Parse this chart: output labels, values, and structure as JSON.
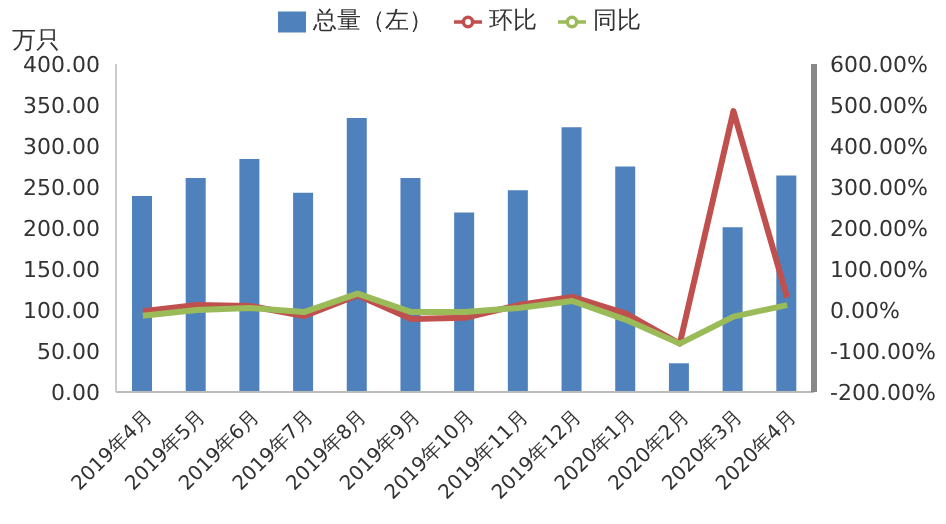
{
  "chart_data": {
    "type": "bar",
    "ylabel": "万只",
    "categories": [
      "2019年4月",
      "2019年5月",
      "2019年6月",
      "2019年7月",
      "2019年8月",
      "2019年9月",
      "2019年10月",
      "2019年11月",
      "2019年12月",
      "2020年1月",
      "2020年2月",
      "2020年3月",
      "2020年4月"
    ],
    "series": [
      {
        "name": "总量（左）",
        "color": "#4f81bd",
        "values": [
          239,
          261,
          284,
          243,
          334,
          261,
          219,
          246,
          323,
          275,
          35,
          201,
          264
        ]
      },
      {
        "name": "环比",
        "type": "line",
        "axis": "y2",
        "color": "#c0504d",
        "values": [
          -3,
          12,
          10,
          -15,
          36,
          -22,
          -19,
          12,
          32,
          -9,
          -82,
          485,
          30
        ]
      },
      {
        "name": "同比",
        "type": "line",
        "axis": "y2",
        "color": "#9bbb59",
        "values": [
          -14,
          0,
          5,
          -5,
          40,
          -5,
          -5,
          5,
          22,
          -24,
          -82,
          -16,
          12
        ]
      }
    ],
    "ylim": [
      0,
      400
    ],
    "yticks": [
      {
        "value": 0,
        "label": "0.00"
      },
      {
        "value": 50,
        "label": "50.00"
      },
      {
        "value": 100,
        "label": "100.00"
      },
      {
        "value": 150,
        "label": "150.00"
      },
      {
        "value": 200,
        "label": "200.00"
      },
      {
        "value": 250,
        "label": "250.00"
      },
      {
        "value": 300,
        "label": "300.00"
      },
      {
        "value": 350,
        "label": "350.00"
      },
      {
        "value": 400,
        "label": "400.00"
      }
    ],
    "y2lim": [
      -200,
      600
    ],
    "y2ticks": [
      {
        "value": -200,
        "label": "-200.00%"
      },
      {
        "value": -100,
        "label": "-100.00%"
      },
      {
        "value": 0,
        "label": "0.00%"
      },
      {
        "value": 100,
        "label": "100.00%"
      },
      {
        "value": 200,
        "label": "200.00%"
      },
      {
        "value": 300,
        "label": "300.00%"
      },
      {
        "value": 400,
        "label": "400.00%"
      },
      {
        "value": 500,
        "label": "500.00%"
      },
      {
        "value": 600,
        "label": "600.00%"
      }
    ],
    "legend": "top",
    "grid": false,
    "marker": "none",
    "line_style": "solid"
  }
}
